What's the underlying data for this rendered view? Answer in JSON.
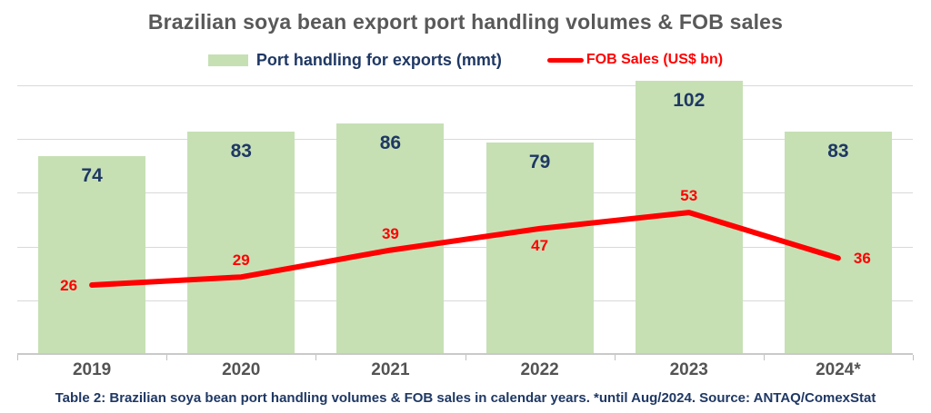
{
  "title": "Brazilian soya bean export port handling volumes & FOB sales",
  "legend": {
    "bars_label": "Port handling for exports (mmt)",
    "line_label": "FOB Sales (US$ bn)"
  },
  "caption": "Table 2: Brazilian soya bean port handling volumes & FOB sales in calendar years. *until Aug/2024. Source: ANTAQ/ComexStat",
  "colors": {
    "bar_fill": "#c6e0b4",
    "bar_label": "#1f3864",
    "line": "#ff0000",
    "line_label": "#ff0000",
    "title_text": "#595959",
    "x_axis_label": "#545454",
    "legend_bar_text": "#1f3864",
    "legend_line_text": "#ff0000",
    "caption_text": "#1f3864",
    "gridline": "#d9d9d9",
    "axis_line": "#c9c9c9",
    "tick": "#bfbfbf",
    "background": "#ffffff"
  },
  "chart_data": {
    "type": "bar",
    "subtype": "bar-line-combo",
    "title": "Brazilian soya bean export port handling volumes & FOB sales",
    "categories": [
      "2019",
      "2020",
      "2021",
      "2022",
      "2023",
      "2024*"
    ],
    "series": [
      {
        "name": "Port handling for exports (mmt)",
        "type": "bar",
        "values": [
          74,
          83,
          86,
          79,
          102,
          83
        ]
      },
      {
        "name": "FOB Sales (US$ bn)",
        "type": "line",
        "values": [
          26,
          29,
          39,
          47,
          53,
          36
        ],
        "label_positions": [
          "left",
          "above",
          "above",
          "below",
          "above",
          "right"
        ]
      }
    ],
    "xlabel": "",
    "ylabel": "",
    "ylim": [
      0,
      105
    ],
    "gridline_step": 20,
    "grid": "horizontal",
    "y_axis_tick_labels_visible": false,
    "legend_position": "top",
    "data_labels": "on"
  }
}
